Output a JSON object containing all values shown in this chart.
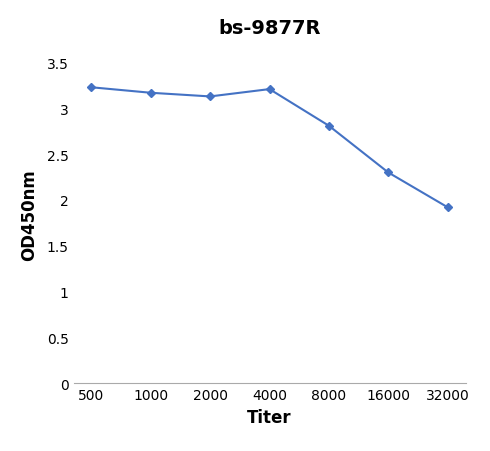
{
  "title": "bs-9877R",
  "xlabel": "Titer",
  "ylabel": "OD450nm",
  "x_values": [
    500,
    1000,
    2000,
    4000,
    8000,
    16000,
    32000
  ],
  "y_values": [
    3.23,
    3.17,
    3.13,
    3.21,
    2.81,
    2.3,
    1.92
  ],
  "line_color": "#4472C4",
  "marker": "D",
  "marker_size": 4,
  "line_width": 1.5,
  "ylim": [
    0,
    3.7
  ],
  "yticks": [
    0,
    0.5,
    1,
    1.5,
    2,
    2.5,
    3,
    3.5
  ],
  "ytick_labels": [
    "0",
    "0.5",
    "1",
    "1.5",
    "2",
    "2.5",
    "3",
    "3.5"
  ],
  "xtick_labels": [
    "500",
    "1000",
    "2000",
    "4000",
    "8000",
    "16000",
    "32000"
  ],
  "title_fontsize": 14,
  "axis_label_fontsize": 12,
  "tick_fontsize": 10,
  "background_color": "#ffffff",
  "spine_color": "#aaaaaa"
}
